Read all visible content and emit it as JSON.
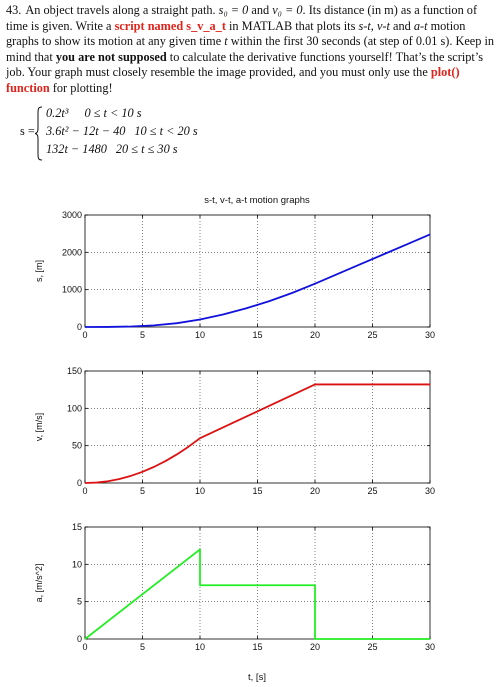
{
  "problem": {
    "number": "43.",
    "text1": "An object travels along a straight path. ",
    "s0": "s₀ = 0",
    "and": " and ",
    "v0": "v₀ = 0",
    "text2": ". Its distance (in m) as a function of time is given. Write a ",
    "script_label": "script named s_v_a_t",
    "text3": " in MATLAB that plots its ",
    "st": "s-t",
    "comma": ", ",
    "vt": "v-t",
    "and2": " and ",
    "at": "a-t",
    "text4": " motion graphs to show its motion at any given time ",
    "t": "t",
    "text5": " within the first 30 seconds (at step of 0.01 s). Keep in mind that ",
    "not_supposed": "you are not supposed",
    "text6": " to calculate the derivative functions yourself! That’s the script’s job. Your graph must closely resemble the image provided, and you must only use the ",
    "plot_fn": "plot() function",
    "text7": " for plotting!"
  },
  "piecewise": {
    "lhs": "s =",
    "cases": [
      {
        "expr": "0.2t³",
        "cond": "0 ≤ t < 10 s"
      },
      {
        "expr": "3.6t² − 12t − 40",
        "cond": "10 ≤ t < 20 s"
      },
      {
        "expr": "132t − 1480",
        "cond": "20 ≤ t ≤ 30 s"
      }
    ]
  },
  "figure": {
    "title": "s-t, v-t, a-t motion graphs",
    "xlabel": "t, [s]",
    "colors": {
      "s": "#1111dd",
      "v": "#dd1111",
      "a": "#22ee22",
      "grid": "#000000",
      "axes": "#000000"
    }
  },
  "chart_data": [
    {
      "type": "line",
      "title": "s-t, v-t, a-t motion graphs",
      "ylabel": "s, [m]",
      "xlim": [
        0,
        30
      ],
      "ylim": [
        0,
        3000
      ],
      "xticks": [
        0,
        5,
        10,
        15,
        20,
        25,
        30
      ],
      "yticks": [
        0,
        1000,
        2000,
        3000
      ],
      "ytick_labels": [
        "0",
        "1000",
        "2000",
        "3000"
      ],
      "grid": "dotted",
      "series": [
        {
          "color": "#1111dd",
          "x": [
            0,
            2,
            4,
            6,
            8,
            10,
            12,
            14,
            16,
            18,
            20,
            22,
            24,
            26,
            28,
            30
          ],
          "y": [
            0,
            1.6,
            12.8,
            43.2,
            102.4,
            200,
            334.4,
            497.6,
            689.6,
            910.4,
            1160,
            1424,
            1688,
            1952,
            2216,
            2480
          ]
        }
      ]
    },
    {
      "type": "line",
      "ylabel": "v, [m/s]",
      "xlim": [
        0,
        30
      ],
      "ylim": [
        0,
        150
      ],
      "xticks": [
        0,
        5,
        10,
        15,
        20,
        25,
        30
      ],
      "yticks": [
        0,
        50,
        100,
        150
      ],
      "ytick_labels": [
        "0",
        "50",
        "100",
        "150"
      ],
      "grid": "dotted",
      "series": [
        {
          "color": "#dd1111",
          "x": [
            0,
            1,
            2,
            3,
            4,
            5,
            6,
            7,
            8,
            9,
            10,
            12,
            14,
            16,
            18,
            20,
            25,
            30
          ],
          "y": [
            0,
            0.6,
            2.4,
            5.4,
            9.6,
            15,
            21.6,
            29.4,
            38.4,
            48.6,
            60,
            74.4,
            88.8,
            103.2,
            117.6,
            132,
            132,
            132
          ]
        }
      ]
    },
    {
      "type": "line",
      "ylabel": "a, [m/s^2]",
      "xlabel": "t, [s]",
      "xlim": [
        0,
        30
      ],
      "ylim": [
        0,
        15
      ],
      "xticks": [
        0,
        5,
        10,
        15,
        20,
        25,
        30
      ],
      "yticks": [
        0,
        5,
        10,
        15
      ],
      "ytick_labels": [
        "0",
        "5",
        "10",
        "15"
      ],
      "grid": "dotted",
      "series": [
        {
          "color": "#22ee22",
          "x": [
            0,
            10,
            10,
            20,
            20,
            30
          ],
          "y": [
            0,
            12,
            7.2,
            7.2,
            0,
            0
          ]
        }
      ]
    }
  ]
}
